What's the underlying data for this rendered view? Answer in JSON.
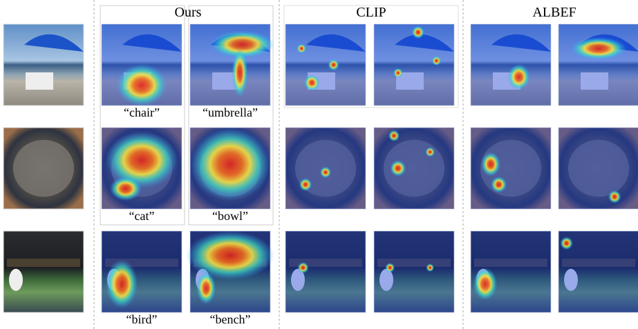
{
  "figure": {
    "columns": [
      "Ours",
      "CLIP",
      "ALBEF"
    ],
    "rows": [
      {
        "labels": [
          "“chair”",
          "“umbrella”"
        ]
      },
      {
        "labels": [
          "“cat”",
          "“bowl”"
        ]
      },
      {
        "labels": [
          "“bird”",
          "“bench”"
        ]
      }
    ]
  }
}
